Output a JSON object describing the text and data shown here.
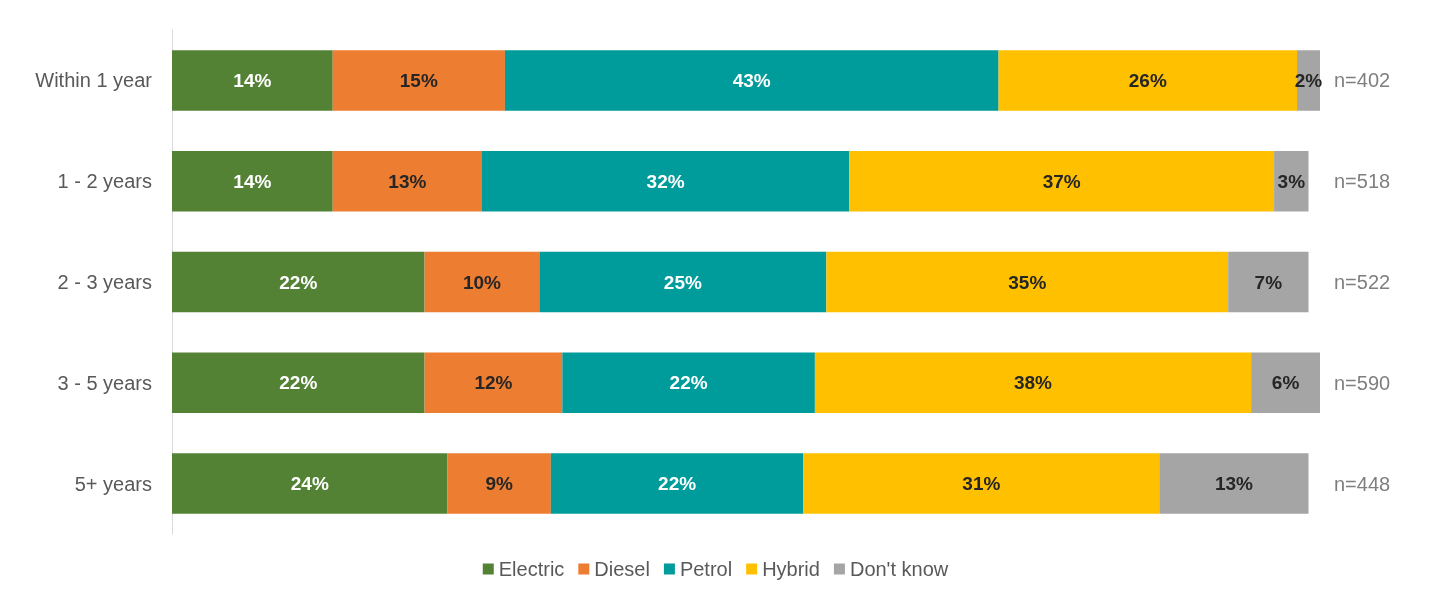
{
  "chart_data": {
    "type": "bar",
    "orientation": "horizontal",
    "stacked": true,
    "legend": "bottom",
    "categories": [
      "Within 1 year",
      "1 - 2 years",
      "2 - 3 years",
      "3 - 5 years",
      "5+ years"
    ],
    "series": [
      {
        "name": "Electric",
        "color": "#548235",
        "values": [
          14,
          14,
          22,
          22,
          24
        ],
        "value_labels": [
          "14%",
          "14%",
          "22%",
          "22%",
          "24%"
        ]
      },
      {
        "name": "Diesel",
        "color": "#ed7d31",
        "values": [
          15,
          13,
          10,
          12,
          9
        ],
        "value_labels": [
          "15%",
          "13%",
          "10%",
          "12%",
          "9%"
        ]
      },
      {
        "name": "Petrol",
        "color": "#009b9b",
        "values": [
          43,
          32,
          25,
          22,
          22
        ],
        "value_labels": [
          "43%",
          "32%",
          "25%",
          "22%",
          "22%"
        ]
      },
      {
        "name": "Hybrid",
        "color": "#ffc000",
        "values": [
          26,
          37,
          35,
          38,
          31
        ],
        "value_labels": [
          "26%",
          "37%",
          "35%",
          "38%",
          "31%"
        ]
      },
      {
        "name": "Don't know",
        "color": "#a5a5a5",
        "values": [
          2,
          3,
          7,
          6,
          13
        ],
        "value_labels": [
          "2%",
          "3%",
          "7%",
          "6%",
          "13%"
        ]
      }
    ],
    "annotations": [
      "n=402",
      "n=518",
      "n=522",
      "n=590",
      "n=448"
    ]
  }
}
